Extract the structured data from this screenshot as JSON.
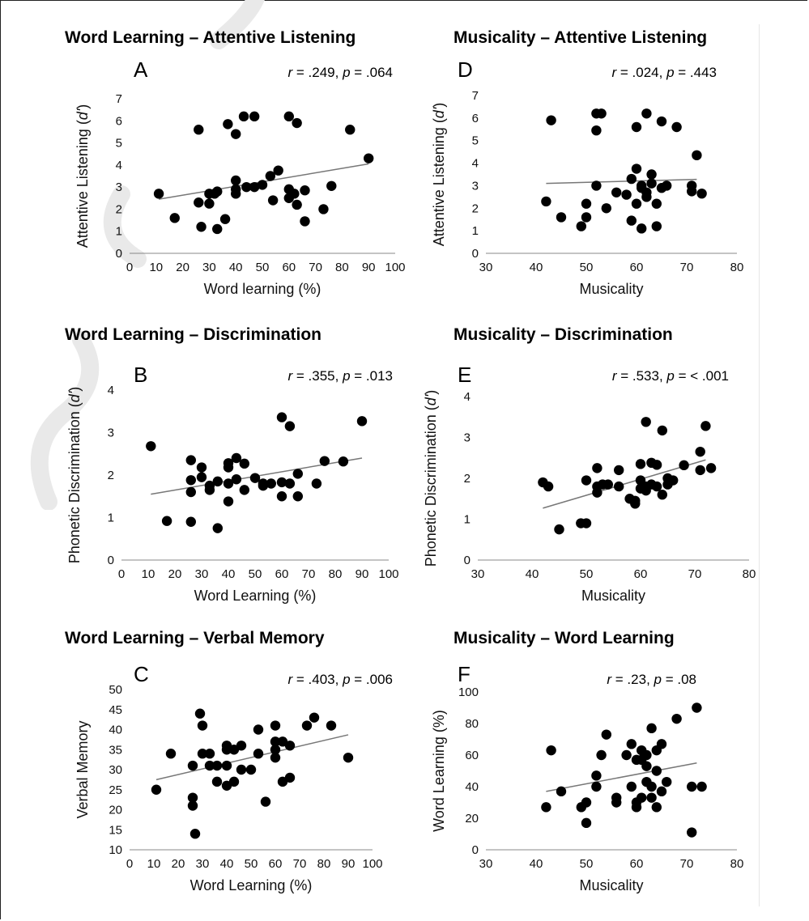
{
  "chart_data": [
    {
      "type": "scatter",
      "title": "Word Learning – Attentive Listening",
      "letter": "A",
      "stat_r": ".249",
      "stat_p": ".064",
      "xlabel": "Word learning  (%)",
      "ylabel": "Attentive Listening (",
      "ylabel_italic": "d'",
      "ylabel_tail": ")",
      "xlim": [
        0,
        100
      ],
      "ylim": [
        0,
        7
      ],
      "xticks": [
        0,
        10,
        20,
        30,
        40,
        50,
        60,
        70,
        80,
        90,
        100
      ],
      "yticks": [
        0,
        1,
        2,
        3,
        4,
        5,
        6,
        7
      ],
      "fit": [
        [
          11,
          2.45
        ],
        [
          90,
          4.05
        ]
      ],
      "points": [
        [
          11,
          2.7
        ],
        [
          17,
          1.6
        ],
        [
          26,
          5.6
        ],
        [
          26,
          2.3
        ],
        [
          27,
          1.2
        ],
        [
          30,
          2.25
        ],
        [
          30,
          2.7
        ],
        [
          32,
          2.7
        ],
        [
          33,
          1.1
        ],
        [
          33,
          2.8
        ],
        [
          36,
          1.55
        ],
        [
          37,
          5.85
        ],
        [
          40,
          5.4
        ],
        [
          40,
          3.3
        ],
        [
          40,
          2.9
        ],
        [
          40,
          2.7
        ],
        [
          43,
          6.2
        ],
        [
          44,
          3.0
        ],
        [
          47,
          6.2
        ],
        [
          47,
          3.0
        ],
        [
          50,
          3.1
        ],
        [
          53,
          3.5
        ],
        [
          54,
          2.4
        ],
        [
          56,
          3.75
        ],
        [
          60,
          6.2
        ],
        [
          60,
          2.9
        ],
        [
          60,
          2.5
        ],
        [
          62,
          2.7
        ],
        [
          63,
          5.9
        ],
        [
          63,
          2.2
        ],
        [
          66,
          1.45
        ],
        [
          66,
          2.85
        ],
        [
          73,
          2.0
        ],
        [
          76,
          3.05
        ],
        [
          83,
          5.6
        ],
        [
          90,
          4.3
        ]
      ]
    },
    {
      "type": "scatter",
      "title": "Word Learning – Discrimination",
      "letter": "B",
      "stat_r": ".355",
      "stat_p": ".013",
      "xlabel": "Word Learning  (%)",
      "ylabel": "Phonetic Discrimination (",
      "ylabel_italic": "d'",
      "ylabel_tail": ")",
      "xlim": [
        0,
        100
      ],
      "ylim": [
        0,
        4
      ],
      "xticks": [
        0,
        10,
        20,
        30,
        40,
        50,
        60,
        70,
        80,
        90,
        100
      ],
      "yticks": [
        0,
        1,
        2,
        3,
        4
      ],
      "fit": [
        [
          11,
          1.55
        ],
        [
          90,
          2.4
        ]
      ],
      "points": [
        [
          11,
          2.68
        ],
        [
          17,
          0.92
        ],
        [
          26,
          2.35
        ],
        [
          26,
          1.88
        ],
        [
          26,
          1.6
        ],
        [
          26,
          0.9
        ],
        [
          30,
          2.18
        ],
        [
          30,
          1.95
        ],
        [
          33,
          1.75
        ],
        [
          33,
          1.65
        ],
        [
          36,
          1.85
        ],
        [
          36,
          0.75
        ],
        [
          40,
          2.28
        ],
        [
          40,
          2.18
        ],
        [
          40,
          1.8
        ],
        [
          40,
          1.38
        ],
        [
          43,
          2.4
        ],
        [
          43,
          1.9
        ],
        [
          46,
          2.27
        ],
        [
          46,
          1.65
        ],
        [
          50,
          1.93
        ],
        [
          53,
          1.8
        ],
        [
          53,
          1.75
        ],
        [
          56,
          1.8
        ],
        [
          60,
          3.36
        ],
        [
          60,
          1.83
        ],
        [
          60,
          1.5
        ],
        [
          63,
          3.15
        ],
        [
          63,
          1.8
        ],
        [
          66,
          2.03
        ],
        [
          66,
          1.5
        ],
        [
          73,
          1.8
        ],
        [
          76,
          2.33
        ],
        [
          83,
          2.32
        ],
        [
          90,
          3.27
        ]
      ]
    },
    {
      "type": "scatter",
      "title": "Word Learning – Verbal Memory",
      "letter": "C",
      "stat_r": ".403",
      "stat_p": ".006",
      "xlabel": "Word Learning  (%)",
      "ylabel": "Verbal Memory",
      "ylabel_italic": "",
      "ylabel_tail": "",
      "xlim": [
        0,
        100
      ],
      "ylim": [
        10,
        50
      ],
      "xticks": [
        0,
        10,
        20,
        30,
        40,
        50,
        60,
        70,
        80,
        90,
        100
      ],
      "yticks": [
        10,
        15,
        20,
        25,
        30,
        35,
        40,
        45,
        50
      ],
      "fit": [
        [
          11,
          27.5
        ],
        [
          90,
          38.7
        ]
      ],
      "points": [
        [
          11,
          25
        ],
        [
          17,
          34
        ],
        [
          26,
          31
        ],
        [
          26,
          23
        ],
        [
          26,
          21
        ],
        [
          27,
          14
        ],
        [
          29,
          44
        ],
        [
          30,
          41
        ],
        [
          30,
          34
        ],
        [
          33,
          34
        ],
        [
          33,
          31
        ],
        [
          36,
          31
        ],
        [
          36,
          27
        ],
        [
          40,
          36
        ],
        [
          40,
          35
        ],
        [
          40,
          31
        ],
        [
          40,
          26
        ],
        [
          43,
          35
        ],
        [
          43,
          27
        ],
        [
          46,
          36
        ],
        [
          46,
          30
        ],
        [
          50,
          30
        ],
        [
          53,
          40
        ],
        [
          53,
          34
        ],
        [
          56,
          22
        ],
        [
          60,
          41
        ],
        [
          60,
          37
        ],
        [
          60,
          35
        ],
        [
          60,
          33
        ],
        [
          63,
          37
        ],
        [
          63,
          27
        ],
        [
          66,
          36
        ],
        [
          66,
          28
        ],
        [
          73,
          41
        ],
        [
          76,
          43
        ],
        [
          83,
          41
        ],
        [
          90,
          33
        ]
      ]
    },
    {
      "type": "scatter",
      "title": "Musicality – Attentive Listening",
      "letter": "D",
      "stat_r": ".024",
      "stat_p": ".443",
      "xlabel": "Musicality",
      "ylabel": "Attentive Listening (",
      "ylabel_italic": "d'",
      "ylabel_tail": ")",
      "xlim": [
        30,
        80
      ],
      "ylim": [
        0,
        7
      ],
      "xticks": [
        30,
        40,
        50,
        60,
        70,
        80
      ],
      "yticks": [
        0,
        1,
        2,
        3,
        4,
        5,
        6,
        7
      ],
      "fit": [
        [
          42,
          3.1
        ],
        [
          72,
          3.28
        ]
      ],
      "points": [
        [
          42,
          2.3
        ],
        [
          43,
          5.9
        ],
        [
          45,
          1.6
        ],
        [
          49,
          1.2
        ],
        [
          50,
          2.2
        ],
        [
          50,
          1.6
        ],
        [
          52,
          6.2
        ],
        [
          52,
          5.45
        ],
        [
          52,
          3.0
        ],
        [
          53,
          6.2
        ],
        [
          54,
          2.0
        ],
        [
          56,
          2.7
        ],
        [
          58,
          2.6
        ],
        [
          59,
          1.45
        ],
        [
          59,
          3.3
        ],
        [
          60,
          5.6
        ],
        [
          60,
          3.75
        ],
        [
          60,
          2.2
        ],
        [
          61,
          3.0
        ],
        [
          61,
          2.9
        ],
        [
          61,
          1.1
        ],
        [
          62,
          6.2
        ],
        [
          62,
          2.7
        ],
        [
          62,
          2.5
        ],
        [
          63,
          3.5
        ],
        [
          63,
          3.1
        ],
        [
          64,
          2.2
        ],
        [
          64,
          1.2
        ],
        [
          65,
          5.85
        ],
        [
          65,
          2.9
        ],
        [
          66,
          3.0
        ],
        [
          68,
          5.6
        ],
        [
          71,
          3.0
        ],
        [
          71,
          2.75
        ],
        [
          72,
          4.35
        ],
        [
          73,
          2.65
        ]
      ]
    },
    {
      "type": "scatter",
      "title": "Musicality – Discrimination",
      "letter": "E",
      "stat_r": ".533",
      "stat_p": "< .001",
      "xlabel": "Musicality",
      "ylabel": "Phonetic Discrimination (",
      "ylabel_italic": "d'",
      "ylabel_tail": ")",
      "xlim": [
        30,
        80
      ],
      "ylim": [
        0,
        4
      ],
      "xticks": [
        30,
        40,
        50,
        60,
        70,
        80
      ],
      "yticks": [
        0,
        1,
        2,
        3,
        4
      ],
      "fit": [
        [
          42,
          1.27
        ],
        [
          72,
          2.45
        ]
      ],
      "points": [
        [
          42,
          1.9
        ],
        [
          43,
          1.8
        ],
        [
          45,
          0.75
        ],
        [
          49,
          0.9
        ],
        [
          50,
          1.95
        ],
        [
          50,
          0.9
        ],
        [
          52,
          2.25
        ],
        [
          52,
          1.8
        ],
        [
          52,
          1.65
        ],
        [
          53,
          1.85
        ],
        [
          54,
          1.85
        ],
        [
          56,
          2.2
        ],
        [
          56,
          1.8
        ],
        [
          58,
          1.5
        ],
        [
          59,
          1.45
        ],
        [
          59,
          1.38
        ],
        [
          60,
          2.35
        ],
        [
          60,
          1.95
        ],
        [
          60,
          1.75
        ],
        [
          61,
          3.38
        ],
        [
          61,
          1.8
        ],
        [
          61,
          1.7
        ],
        [
          62,
          2.38
        ],
        [
          62,
          1.85
        ],
        [
          63,
          2.33
        ],
        [
          63,
          1.8
        ],
        [
          64,
          3.17
        ],
        [
          64,
          1.6
        ],
        [
          65,
          2.0
        ],
        [
          65,
          1.85
        ],
        [
          66,
          1.95
        ],
        [
          68,
          2.32
        ],
        [
          71,
          2.65
        ],
        [
          71,
          2.2
        ],
        [
          72,
          3.28
        ],
        [
          73,
          2.25
        ]
      ]
    },
    {
      "type": "scatter",
      "title": "Musicality – Word Learning",
      "letter": "F",
      "stat_r": ".23",
      "stat_p": ".08",
      "xlabel": "Musicality",
      "ylabel": "Word Learning (%)",
      "ylabel_italic": "",
      "ylabel_tail": "",
      "xlim": [
        30,
        80
      ],
      "ylim": [
        0,
        100
      ],
      "xticks": [
        30,
        40,
        50,
        60,
        70,
        80
      ],
      "yticks": [
        0,
        20,
        40,
        60,
        80,
        100
      ],
      "fit": [
        [
          42,
          37
        ],
        [
          72,
          55
        ]
      ],
      "points": [
        [
          42,
          27
        ],
        [
          43,
          63
        ],
        [
          45,
          37
        ],
        [
          49,
          27
        ],
        [
          50,
          30
        ],
        [
          50,
          17
        ],
        [
          52,
          47
        ],
        [
          52,
          40
        ],
        [
          53,
          60
        ],
        [
          54,
          73
        ],
        [
          56,
          33
        ],
        [
          56,
          30
        ],
        [
          58,
          60
        ],
        [
          59,
          67
        ],
        [
          59,
          40
        ],
        [
          60,
          57
        ],
        [
          60,
          30
        ],
        [
          60,
          27
        ],
        [
          61,
          63
        ],
        [
          61,
          57
        ],
        [
          61,
          33
        ],
        [
          62,
          60
        ],
        [
          62,
          53
        ],
        [
          62,
          43
        ],
        [
          63,
          77
        ],
        [
          63,
          40
        ],
        [
          63,
          33
        ],
        [
          64,
          63
        ],
        [
          64,
          50
        ],
        [
          64,
          27
        ],
        [
          65,
          67
        ],
        [
          65,
          37
        ],
        [
          66,
          43
        ],
        [
          68,
          83
        ],
        [
          71,
          40
        ],
        [
          71,
          11
        ],
        [
          72,
          90
        ],
        [
          73,
          40
        ]
      ]
    }
  ]
}
